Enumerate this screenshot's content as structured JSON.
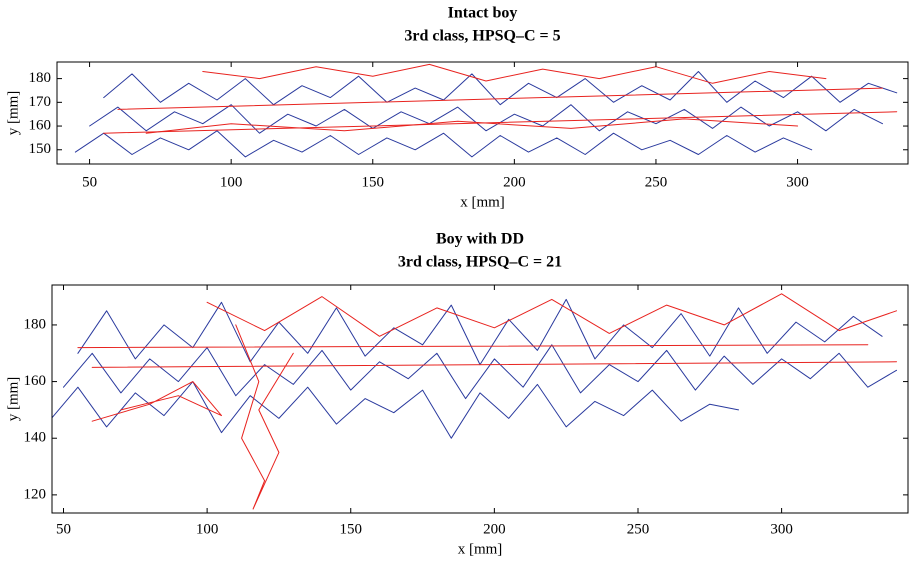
{
  "chart_data": [
    {
      "type": "line",
      "title": "Intact boy",
      "subtitle": "3rd class, HPSQ–C = 5",
      "xlabel": "x [mm]",
      "ylabel": "y [mm]",
      "xlim": [
        38.5,
        339
      ],
      "ylim": [
        144,
        187
      ],
      "xticks": [
        50,
        100,
        150,
        200,
        250,
        300
      ],
      "yticks": [
        150,
        160,
        170,
        180
      ],
      "series": [
        {
          "color": "#2a3a9e",
          "x": [
            55,
            65,
            75,
            85,
            95,
            105,
            115,
            125,
            135,
            145,
            155,
            165,
            175,
            185,
            195,
            205,
            215,
            225,
            235,
            245,
            255,
            265,
            275,
            285,
            295,
            305,
            315,
            325,
            335,
            null,
            50,
            60,
            70,
            80,
            90,
            100,
            110,
            120,
            130,
            140,
            150,
            160,
            170,
            180,
            190,
            200,
            210,
            220,
            230,
            240,
            250,
            260,
            270,
            280,
            290,
            300,
            310,
            320,
            330,
            null,
            45,
            55,
            65,
            75,
            85,
            95,
            105,
            115,
            125,
            135,
            145,
            155,
            165,
            175,
            185,
            195,
            205,
            215,
            225,
            235,
            245,
            255,
            265,
            275,
            285,
            295,
            305
          ],
          "y": [
            172,
            182,
            170,
            178,
            171,
            180,
            169,
            177,
            172,
            181,
            170,
            176,
            171,
            182,
            169,
            178,
            172,
            180,
            170,
            177,
            171,
            183,
            170,
            179,
            172,
            181,
            170,
            178,
            174,
            null,
            160,
            168,
            158,
            166,
            161,
            169,
            157,
            165,
            160,
            167,
            159,
            166,
            161,
            168,
            158,
            165,
            160,
            169,
            158,
            166,
            161,
            167,
            159,
            168,
            160,
            166,
            158,
            167,
            161,
            null,
            149,
            157,
            148,
            155,
            150,
            158,
            147,
            154,
            149,
            156,
            148,
            155,
            150,
            157,
            147,
            156,
            149,
            155,
            148,
            157,
            150,
            154,
            148,
            156,
            149,
            155,
            150
          ]
        },
        {
          "color": "#e8231f",
          "x": [
            330,
            60,
            null,
            335,
            55,
            null,
            90,
            110,
            130,
            150,
            170,
            190,
            210,
            230,
            250,
            270,
            290,
            310,
            null,
            300,
            260,
            220,
            180,
            140,
            100,
            70
          ],
          "y": [
            176,
            167,
            null,
            166,
            157,
            null,
            183,
            180,
            185,
            181,
            186,
            179,
            184,
            180,
            185,
            178,
            183,
            180,
            null,
            160,
            163,
            159,
            162,
            158,
            161,
            157
          ]
        }
      ]
    },
    {
      "type": "line",
      "title": "Boy with DD",
      "subtitle": "3rd class, HPSQ–C = 21",
      "xlabel": "x [mm]",
      "ylabel": "y [mm]",
      "xlim": [
        46,
        344
      ],
      "ylim": [
        113.6,
        194.1
      ],
      "xticks": [
        50,
        100,
        150,
        200,
        250,
        300
      ],
      "yticks": [
        120,
        140,
        160,
        180
      ],
      "series": [
        {
          "color": "#2a3a9e",
          "x": [
            55,
            65,
            75,
            85,
            95,
            105,
            115,
            125,
            135,
            145,
            155,
            165,
            175,
            185,
            195,
            205,
            215,
            225,
            235,
            245,
            255,
            265,
            275,
            285,
            295,
            305,
            315,
            325,
            335,
            null,
            50,
            60,
            70,
            80,
            90,
            100,
            110,
            120,
            130,
            140,
            150,
            160,
            170,
            180,
            190,
            200,
            210,
            220,
            230,
            240,
            250,
            260,
            270,
            280,
            290,
            300,
            310,
            320,
            330,
            340,
            null,
            45,
            55,
            65,
            75,
            85,
            95,
            105,
            115,
            125,
            135,
            145,
            155,
            165,
            175,
            185,
            195,
            205,
            215,
            225,
            235,
            245,
            255,
            265,
            275,
            285
          ],
          "y": [
            170,
            185,
            168,
            180,
            172,
            188,
            167,
            181,
            170,
            186,
            169,
            179,
            173,
            187,
            166,
            182,
            171,
            189,
            168,
            180,
            172,
            184,
            169,
            186,
            170,
            181,
            174,
            183,
            176,
            null,
            158,
            170,
            156,
            168,
            160,
            172,
            155,
            166,
            159,
            171,
            157,
            167,
            161,
            170,
            154,
            168,
            158,
            173,
            156,
            166,
            160,
            171,
            157,
            169,
            159,
            168,
            161,
            170,
            158,
            164,
            null,
            146,
            158,
            144,
            156,
            148,
            160,
            142,
            155,
            147,
            158,
            145,
            154,
            149,
            157,
            140,
            156,
            147,
            159,
            144,
            153,
            148,
            157,
            146,
            152,
            150
          ]
        },
        {
          "color": "#e8231f",
          "x": [
            330,
            55,
            null,
            340,
            60,
            null,
            110,
            118,
            112,
            120,
            116,
            125,
            118,
            130,
            null,
            100,
            120,
            140,
            160,
            180,
            200,
            220,
            240,
            260,
            280,
            300,
            320,
            340,
            null,
            70,
            90,
            105,
            95,
            80,
            60
          ],
          "y": [
            173,
            172,
            null,
            167,
            165,
            null,
            180,
            160,
            140,
            125,
            115,
            135,
            150,
            170,
            null,
            188,
            178,
            190,
            176,
            186,
            179,
            189,
            177,
            187,
            180,
            191,
            178,
            185,
            null,
            150,
            155,
            148,
            160,
            152,
            146
          ]
        }
      ]
    }
  ]
}
